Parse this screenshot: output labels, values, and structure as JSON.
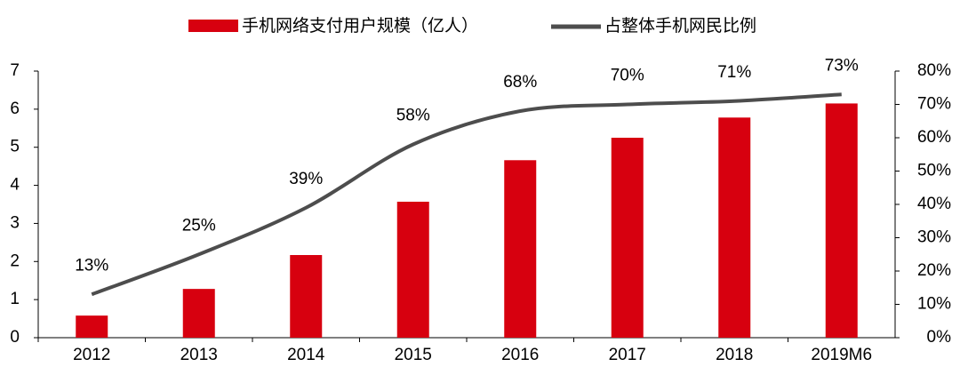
{
  "chart_data": {
    "type": "bar-line",
    "categories": [
      "2012",
      "2013",
      "2014",
      "2015",
      "2016",
      "2017",
      "2018",
      "2019M6"
    ],
    "series": [
      {
        "name": "手机网络支付用户规模（亿人）",
        "type": "bar",
        "color": "#d7000f",
        "values": [
          0.58,
          1.28,
          2.17,
          3.57,
          4.66,
          5.25,
          5.78,
          6.15
        ]
      },
      {
        "name": "占整体手机网民比例",
        "type": "line",
        "axis": "y2",
        "color": "#4d4d4d",
        "values": [
          13,
          25,
          39,
          58,
          68,
          70,
          71,
          73
        ],
        "value_labels": [
          "13%",
          "25%",
          "39%",
          "58%",
          "68%",
          "70%",
          "71%",
          "73%"
        ]
      }
    ],
    "ylim": [
      0,
      7
    ],
    "yticks": [
      0,
      1,
      2,
      3,
      4,
      5,
      6,
      7
    ],
    "y2lim": [
      0,
      80
    ],
    "y2ticks": [
      {
        "value": 0,
        "label": "0%"
      },
      {
        "value": 10,
        "label": "10%"
      },
      {
        "value": 20,
        "label": "20%"
      },
      {
        "value": 30,
        "label": "30%"
      },
      {
        "value": 40,
        "label": "40%"
      },
      {
        "value": 50,
        "label": "50%"
      },
      {
        "value": 60,
        "label": "60%"
      },
      {
        "value": 70,
        "label": "70%"
      },
      {
        "value": 80,
        "label": "80%"
      }
    ]
  }
}
